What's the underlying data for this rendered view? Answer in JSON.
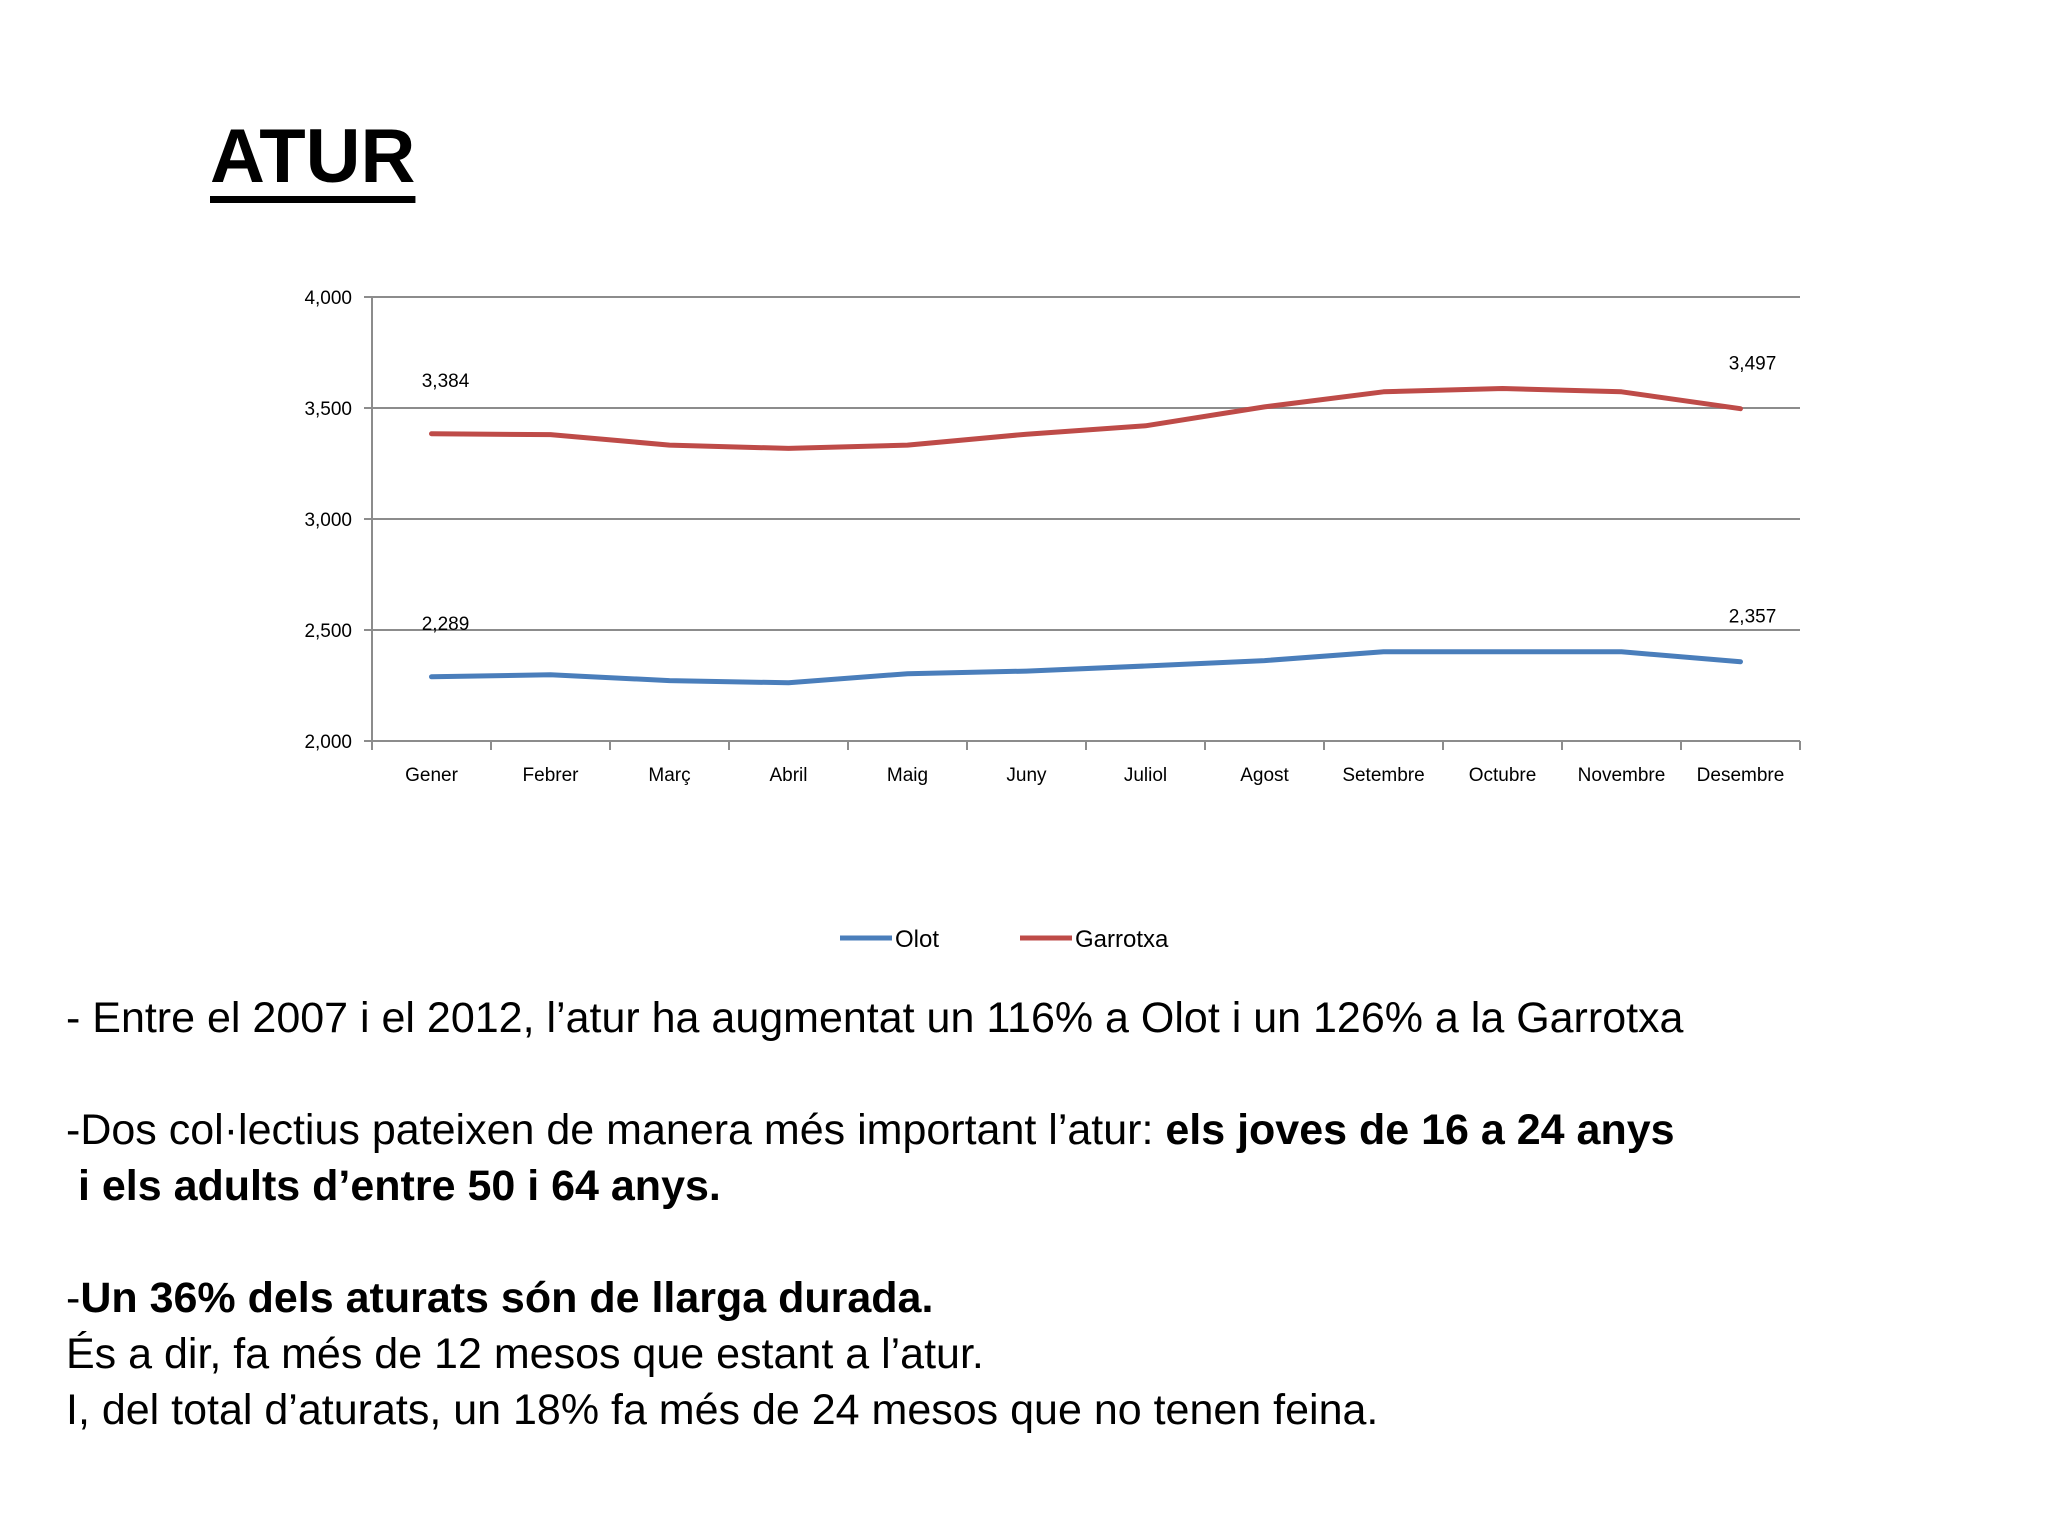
{
  "title": "ATUR",
  "chart_data": {
    "type": "line",
    "categories": [
      "Gener",
      "Febrer",
      "Març",
      "Abril",
      "Maig",
      "Juny",
      "Juliol",
      "Agost",
      "Setembre",
      "Octubre",
      "Novembre",
      "Desembre"
    ],
    "series": [
      {
        "name": "Olot",
        "color": "#4a7ebb",
        "values": [
          2289,
          2298,
          2272,
          2262,
          2303,
          2315,
          2338,
          2362,
          2402,
          2402,
          2402,
          2357
        ],
        "labels": {
          "first": "2,289",
          "last": "2,357"
        }
      },
      {
        "name": "Garrotxa",
        "color": "#be4b48",
        "values": [
          3384,
          3380,
          3333,
          3318,
          3333,
          3382,
          3420,
          3505,
          3573,
          3588,
          3573,
          3497
        ],
        "labels": {
          "first": "3,384",
          "last": "3,497"
        }
      }
    ],
    "ylim": [
      2000,
      4000
    ],
    "yticks": [
      {
        "value": 4000,
        "label": "4,000"
      },
      {
        "value": 3500,
        "label": "3,500"
      },
      {
        "value": 3000,
        "label": "3,000"
      },
      {
        "value": 2500,
        "label": "2,500"
      },
      {
        "value": 2000,
        "label": "2,000"
      }
    ],
    "grid": true,
    "legend": "bottom"
  },
  "paragraphs": [
    [
      {
        "text": "- Entre el 2007 i el 2012, l’atur ha augmentat un 116% a Olot i un 126% a la Garrotxa",
        "bold": false
      }
    ],
    [],
    [
      {
        "text": "-Dos col·lectius pateixen de manera més important l’atur: ",
        "bold": false
      },
      {
        "text": "els joves de 16 a 24 anys",
        "bold": true
      }
    ],
    [
      {
        "text": " i els adults d’entre 50 i 64 anys.",
        "bold": true
      }
    ],
    [],
    [
      {
        "text": "-",
        "bold": false
      },
      {
        "text": "Un 36% dels aturats són de llarga durada.",
        "bold": true
      }
    ],
    [
      {
        "text": "És a dir, fa més de 12 mesos que estant a l’atur.",
        "bold": false
      }
    ],
    [
      {
        "text": "I, del total d’aturats, un 18% fa més de 24 mesos que no tenen feina.",
        "bold": false
      }
    ]
  ]
}
